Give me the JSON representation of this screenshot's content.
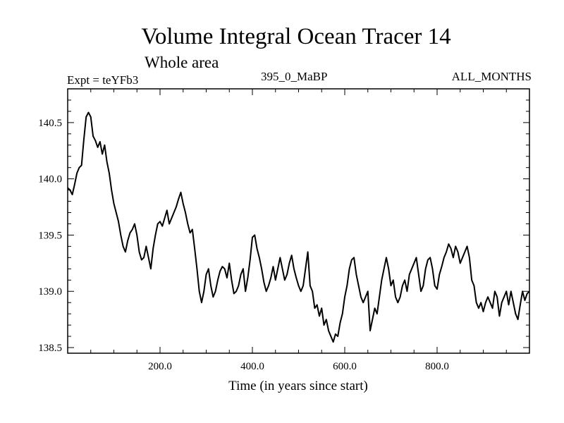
{
  "header": {
    "title": "Volume Integral Ocean Tracer 14",
    "subtitle": "Whole area",
    "experiment": "Expt = teYFb3",
    "period": "395_0_MaBP",
    "months": "ALL_MONTHS"
  },
  "chart_data": {
    "type": "line",
    "title": "Volume Integral Ocean Tracer 14",
    "xlabel": "Time (in years since start)",
    "ylabel": "",
    "xlim": [
      0,
      1000
    ],
    "ylim": [
      138.45,
      140.8
    ],
    "x_ticks": [
      200,
      400,
      600,
      800
    ],
    "x_tick_labels": [
      "200.0",
      "400.0",
      "600.0",
      "800.0"
    ],
    "y_ticks": [
      138.5,
      139.0,
      139.5,
      140.0,
      140.5
    ],
    "y_tick_labels": [
      "138.5",
      "139.0",
      "139.5",
      "140.0",
      "140.5"
    ],
    "grid": false,
    "series": [
      {
        "name": "Tracer 14",
        "color": "#000000",
        "x": [
          0,
          5,
          10,
          15,
          20,
          25,
          30,
          35,
          40,
          45,
          50,
          55,
          60,
          65,
          70,
          75,
          80,
          85,
          90,
          95,
          100,
          105,
          110,
          115,
          120,
          125,
          130,
          135,
          140,
          145,
          150,
          155,
          160,
          165,
          170,
          175,
          180,
          185,
          190,
          195,
          200,
          205,
          210,
          215,
          220,
          225,
          230,
          235,
          240,
          245,
          250,
          255,
          260,
          265,
          270,
          275,
          280,
          285,
          290,
          295,
          300,
          305,
          310,
          315,
          320,
          325,
          330,
          335,
          340,
          345,
          350,
          355,
          360,
          365,
          370,
          375,
          380,
          385,
          390,
          395,
          400,
          405,
          410,
          415,
          420,
          425,
          430,
          435,
          440,
          445,
          450,
          455,
          460,
          465,
          470,
          475,
          480,
          485,
          490,
          495,
          500,
          505,
          510,
          515,
          520,
          525,
          530,
          535,
          540,
          545,
          550,
          555,
          560,
          565,
          570,
          575,
          580,
          585,
          590,
          595,
          600,
          605,
          610,
          615,
          620,
          625,
          630,
          635,
          640,
          645,
          650,
          655,
          660,
          665,
          670,
          675,
          680,
          685,
          690,
          695,
          700,
          705,
          710,
          715,
          720,
          725,
          730,
          735,
          740,
          745,
          750,
          755,
          760,
          765,
          770,
          775,
          780,
          785,
          790,
          795,
          800,
          805,
          810,
          815,
          820,
          825,
          830,
          835,
          840,
          845,
          850,
          855,
          860,
          865,
          870,
          875,
          880,
          885,
          890,
          895,
          900,
          905,
          910,
          915,
          920,
          925,
          930,
          935,
          940,
          945,
          950,
          955,
          960,
          965,
          970,
          975,
          980,
          985,
          990,
          995,
          1000
        ],
        "y": [
          139.92,
          139.9,
          139.86,
          139.95,
          140.05,
          140.1,
          140.12,
          140.35,
          140.55,
          140.59,
          140.55,
          140.38,
          140.34,
          140.28,
          140.33,
          140.22,
          140.3,
          140.15,
          140.05,
          139.9,
          139.78,
          139.7,
          139.62,
          139.5,
          139.4,
          139.35,
          139.45,
          139.52,
          139.55,
          139.6,
          139.5,
          139.35,
          139.28,
          139.3,
          139.4,
          139.3,
          139.2,
          139.38,
          139.5,
          139.6,
          139.62,
          139.58,
          139.65,
          139.72,
          139.6,
          139.65,
          139.7,
          139.75,
          139.82,
          139.88,
          139.78,
          139.7,
          139.6,
          139.52,
          139.55,
          139.38,
          139.2,
          139.0,
          138.9,
          139.0,
          139.15,
          139.2,
          139.05,
          138.95,
          139.0,
          139.1,
          139.18,
          139.22,
          139.2,
          139.12,
          139.25,
          139.1,
          138.98,
          139.0,
          139.05,
          139.15,
          139.2,
          139.0,
          139.12,
          139.28,
          139.48,
          139.5,
          139.38,
          139.3,
          139.2,
          139.08,
          139.0,
          139.05,
          139.12,
          139.22,
          139.1,
          139.2,
          139.3,
          139.2,
          139.1,
          139.15,
          139.25,
          139.32,
          139.2,
          139.12,
          139.05,
          139.0,
          139.05,
          139.2,
          139.35,
          139.05,
          139.0,
          138.85,
          138.88,
          138.78,
          138.85,
          138.7,
          138.75,
          138.65,
          138.6,
          138.55,
          138.62,
          138.6,
          138.72,
          138.8,
          138.95,
          139.05,
          139.2,
          139.28,
          139.3,
          139.15,
          139.05,
          138.95,
          138.9,
          138.95,
          139.0,
          138.65,
          138.75,
          138.85,
          138.8,
          138.95,
          139.1,
          139.2,
          139.3,
          139.2,
          139.05,
          139.1,
          138.95,
          138.9,
          138.95,
          139.05,
          139.1,
          139.0,
          139.15,
          139.2,
          139.25,
          139.3,
          139.15,
          139.0,
          139.05,
          139.2,
          139.28,
          139.3,
          139.2,
          139.05,
          139.02,
          139.15,
          139.22,
          139.3,
          139.35,
          139.42,
          139.38,
          139.3,
          139.4,
          139.35,
          139.25,
          139.3,
          139.35,
          139.4,
          139.3,
          139.1,
          139.05,
          138.9,
          138.85,
          138.9,
          138.82,
          138.9,
          138.95,
          138.9,
          138.85,
          139.0,
          138.95,
          138.78,
          138.9,
          138.95,
          139.0,
          138.88,
          139.0,
          138.9,
          138.8,
          138.75,
          138.88,
          139.0,
          138.92,
          138.98,
          139.0
        ]
      }
    ]
  }
}
